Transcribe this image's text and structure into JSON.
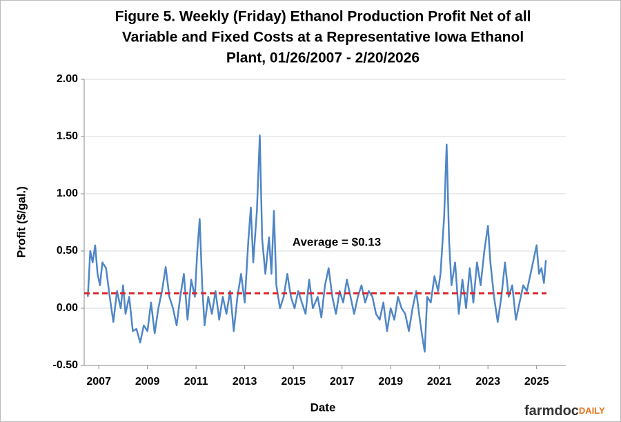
{
  "chart_data": {
    "type": "line",
    "title_lines": [
      "Figure 5. Weekly (Friday) Ethanol Production Profit Net of all",
      "Variable and Fixed Costs at a Representative Iowa Ethanol",
      "Plant, 01/26/2007  - 2/20/2026"
    ],
    "x_label": "Date",
    "y_label": "Profit ($/gal.)",
    "annotation": "Average = $0.13",
    "average_line": 0.13,
    "average_color": "#d9262b",
    "xlim": [
      2006.4,
      2026.2
    ],
    "xticks": [
      2007,
      2009,
      2011,
      2013,
      2015,
      2017,
      2019,
      2021,
      2023,
      2025
    ],
    "ylim": [
      -0.5,
      2.0
    ],
    "yticks": [
      {
        "value": -0.5,
        "label": "-0.50"
      },
      {
        "value": 0,
        "label": "0.00"
      },
      {
        "value": 0.5,
        "label": "0.50"
      },
      {
        "value": 1.0,
        "label": "1.00"
      },
      {
        "value": 1.5,
        "label": "1.50"
      },
      {
        "value": 2.0,
        "label": "2.00"
      }
    ],
    "grid": true,
    "x": [
      2006.55,
      2006.65,
      2006.75,
      2006.85,
      2006.95,
      2007.05,
      2007.15,
      2007.3,
      2007.45,
      2007.6,
      2007.75,
      2007.9,
      2008.0,
      2008.1,
      2008.25,
      2008.4,
      2008.55,
      2008.7,
      2008.85,
      2009.0,
      2009.15,
      2009.3,
      2009.45,
      2009.6,
      2009.75,
      2009.9,
      2010.05,
      2010.2,
      2010.35,
      2010.5,
      2010.65,
      2010.8,
      2010.95,
      2011.05,
      2011.15,
      2011.25,
      2011.35,
      2011.5,
      2011.65,
      2011.8,
      2011.95,
      2012.1,
      2012.25,
      2012.4,
      2012.55,
      2012.7,
      2012.85,
      2013.0,
      2013.15,
      2013.25,
      2013.35,
      2013.5,
      2013.62,
      2013.72,
      2013.85,
      2014.0,
      2014.1,
      2014.2,
      2014.3,
      2014.45,
      2014.6,
      2014.75,
      2014.9,
      2015.05,
      2015.2,
      2015.35,
      2015.5,
      2015.65,
      2015.8,
      2016.0,
      2016.15,
      2016.3,
      2016.45,
      2016.6,
      2016.75,
      2016.9,
      2017.05,
      2017.2,
      2017.35,
      2017.5,
      2017.65,
      2017.8,
      2017.95,
      2018.1,
      2018.25,
      2018.4,
      2018.55,
      2018.7,
      2018.85,
      2019.0,
      2019.15,
      2019.3,
      2019.45,
      2019.6,
      2019.75,
      2019.9,
      2020.05,
      2020.2,
      2020.3,
      2020.4,
      2020.5,
      2020.65,
      2020.8,
      2020.95,
      2021.05,
      2021.2,
      2021.3,
      2021.4,
      2021.5,
      2021.65,
      2021.8,
      2021.95,
      2022.1,
      2022.25,
      2022.4,
      2022.55,
      2022.7,
      2022.85,
      2023.0,
      2023.1,
      2023.25,
      2023.4,
      2023.55,
      2023.7,
      2023.85,
      2024.0,
      2024.15,
      2024.3,
      2024.45,
      2024.6,
      2024.75,
      2024.9,
      2025.0,
      2025.1,
      2025.2,
      2025.3,
      2025.38
    ],
    "series": [
      {
        "color": "#4f86c6",
        "values": [
          0.1,
          0.5,
          0.4,
          0.55,
          0.3,
          0.2,
          0.4,
          0.35,
          0.1,
          -0.12,
          0.15,
          0.0,
          0.2,
          -0.05,
          0.1,
          -0.2,
          -0.18,
          -0.3,
          -0.15,
          -0.2,
          0.05,
          -0.22,
          0.0,
          0.15,
          0.36,
          0.1,
          0.0,
          -0.15,
          0.1,
          0.3,
          -0.1,
          0.25,
          0.1,
          0.5,
          0.78,
          0.2,
          -0.15,
          0.1,
          -0.05,
          0.15,
          -0.1,
          0.1,
          -0.05,
          0.15,
          -0.2,
          0.1,
          0.3,
          0.05,
          0.6,
          0.88,
          0.4,
          0.85,
          1.51,
          0.6,
          0.3,
          0.62,
          0.3,
          0.85,
          0.2,
          0.0,
          0.1,
          0.3,
          0.1,
          0.0,
          0.15,
          0.05,
          -0.05,
          0.25,
          0.0,
          0.1,
          -0.08,
          0.2,
          0.35,
          0.1,
          -0.05,
          0.15,
          0.05,
          0.25,
          0.1,
          -0.05,
          0.1,
          0.2,
          0.05,
          0.15,
          0.1,
          -0.05,
          -0.1,
          0.05,
          -0.2,
          0.0,
          -0.1,
          0.1,
          0.0,
          -0.05,
          -0.2,
          0.0,
          0.15,
          -0.1,
          -0.25,
          -0.38,
          0.1,
          0.05,
          0.28,
          0.15,
          0.3,
          0.8,
          1.43,
          0.6,
          0.2,
          0.4,
          -0.05,
          0.25,
          0.0,
          0.35,
          0.05,
          0.4,
          0.2,
          0.5,
          0.72,
          0.4,
          0.1,
          -0.12,
          0.1,
          0.4,
          0.1,
          0.2,
          -0.1,
          0.05,
          0.2,
          0.15,
          0.3,
          0.45,
          0.55,
          0.3,
          0.35,
          0.22,
          0.42
        ]
      }
    ]
  },
  "footer": {
    "brand": "farmdoc",
    "brand_suffix": "DAILY"
  }
}
